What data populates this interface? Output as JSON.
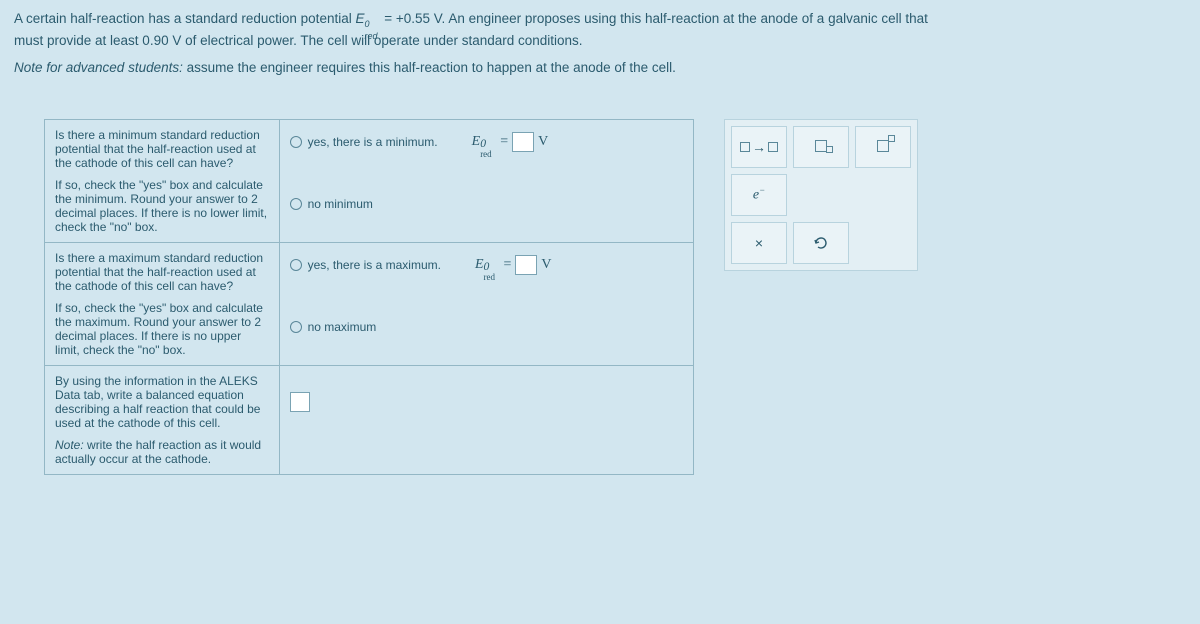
{
  "header": {
    "line1_a": "A certain half-reaction has a standard reduction potential ",
    "line1_b": " = +0.55 V. An engineer proposes using this half-reaction at the anode of a galvanic cell that",
    "line2": "must provide at least 0.90 V of electrical power. The cell will operate under standard conditions.",
    "note_a": "Note for advanced students:",
    "note_b": " assume the engineer requires this half-reaction to happen at the anode of the cell."
  },
  "q1": {
    "p1": "Is there a minimum standard reduction potential that the half-reaction used at the cathode of this cell can have?",
    "p2": "If so, check the \"yes\" box and calculate the minimum. Round your answer to 2 decimal places. If there is no lower limit, check the \"no\" box.",
    "yes": "yes, there is a minimum.",
    "no": "no minimum"
  },
  "q2": {
    "p1": "Is there a maximum standard reduction potential that the half-reaction used at the cathode of this cell can have?",
    "p2": "If so, check the \"yes\" box and calculate the maximum. Round your answer to 2 decimal places. If there is no upper limit, check the \"no\" box.",
    "yes": "yes, there is a maximum.",
    "no": "no maximum"
  },
  "q3": {
    "p1": "By using the information in the ALEKS Data tab, write a balanced equation describing a half reaction that could be used at the cathode of this cell.",
    "p2": "Note: write the half reaction as it would actually occur at the cathode."
  },
  "formula": {
    "E": "E",
    "sup0": "0",
    "sub": "red",
    "eq": "=",
    "V": "V"
  },
  "palette": {
    "arrow": "→",
    "times": "×"
  },
  "colors": {
    "bg": "#d2e6ef",
    "text": "#2b5b6e",
    "border": "#93b7c5",
    "input_border": "#7aa3b3",
    "palette_bg": "#e3eff4",
    "palette_btn": "#eaf3f7"
  }
}
